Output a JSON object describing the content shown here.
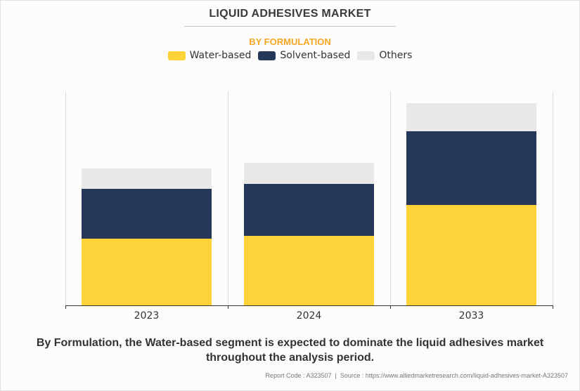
{
  "header": {
    "title": "LIQUID ADHESIVES MARKET",
    "subtitle": "BY FORMULATION"
  },
  "colors": {
    "water_based": "#fed33a",
    "solvent_based": "#253859",
    "others": "#e8e8e8",
    "subtitle": "#f5a623"
  },
  "chart_data": {
    "type": "bar",
    "stacked": true,
    "title": "LIQUID ADHESIVES MARKET",
    "subtitle": "BY FORMULATION",
    "xlabel": "",
    "ylabel": "",
    "categories": [
      "2023",
      "2024",
      "2033"
    ],
    "series": [
      {
        "name": "Water-based",
        "color": "#fed33a",
        "values": [
          95,
          99,
          143
        ]
      },
      {
        "name": "Solvent-based",
        "color": "#253859",
        "values": [
          71,
          74,
          105
        ]
      },
      {
        "name": "Others",
        "color": "#e8e8e8",
        "values": [
          29,
          30,
          40
        ]
      }
    ],
    "ylim": [
      0,
      305
    ],
    "y_axis_visible": false,
    "grid": "vertical category separators",
    "legend_position": "top-center",
    "note": "Relative values (no y-axis scale shown)"
  },
  "footer": {
    "caption_line1": "By Formulation, the Water-based segment is expected to dominate the liquid adhesives market",
    "caption_line2": "throughout the analysis period.",
    "source": "Report Code : A323507  |  Source : https://www.alliedmarketresearch.com/liquid-adhesives-market-A323507"
  }
}
